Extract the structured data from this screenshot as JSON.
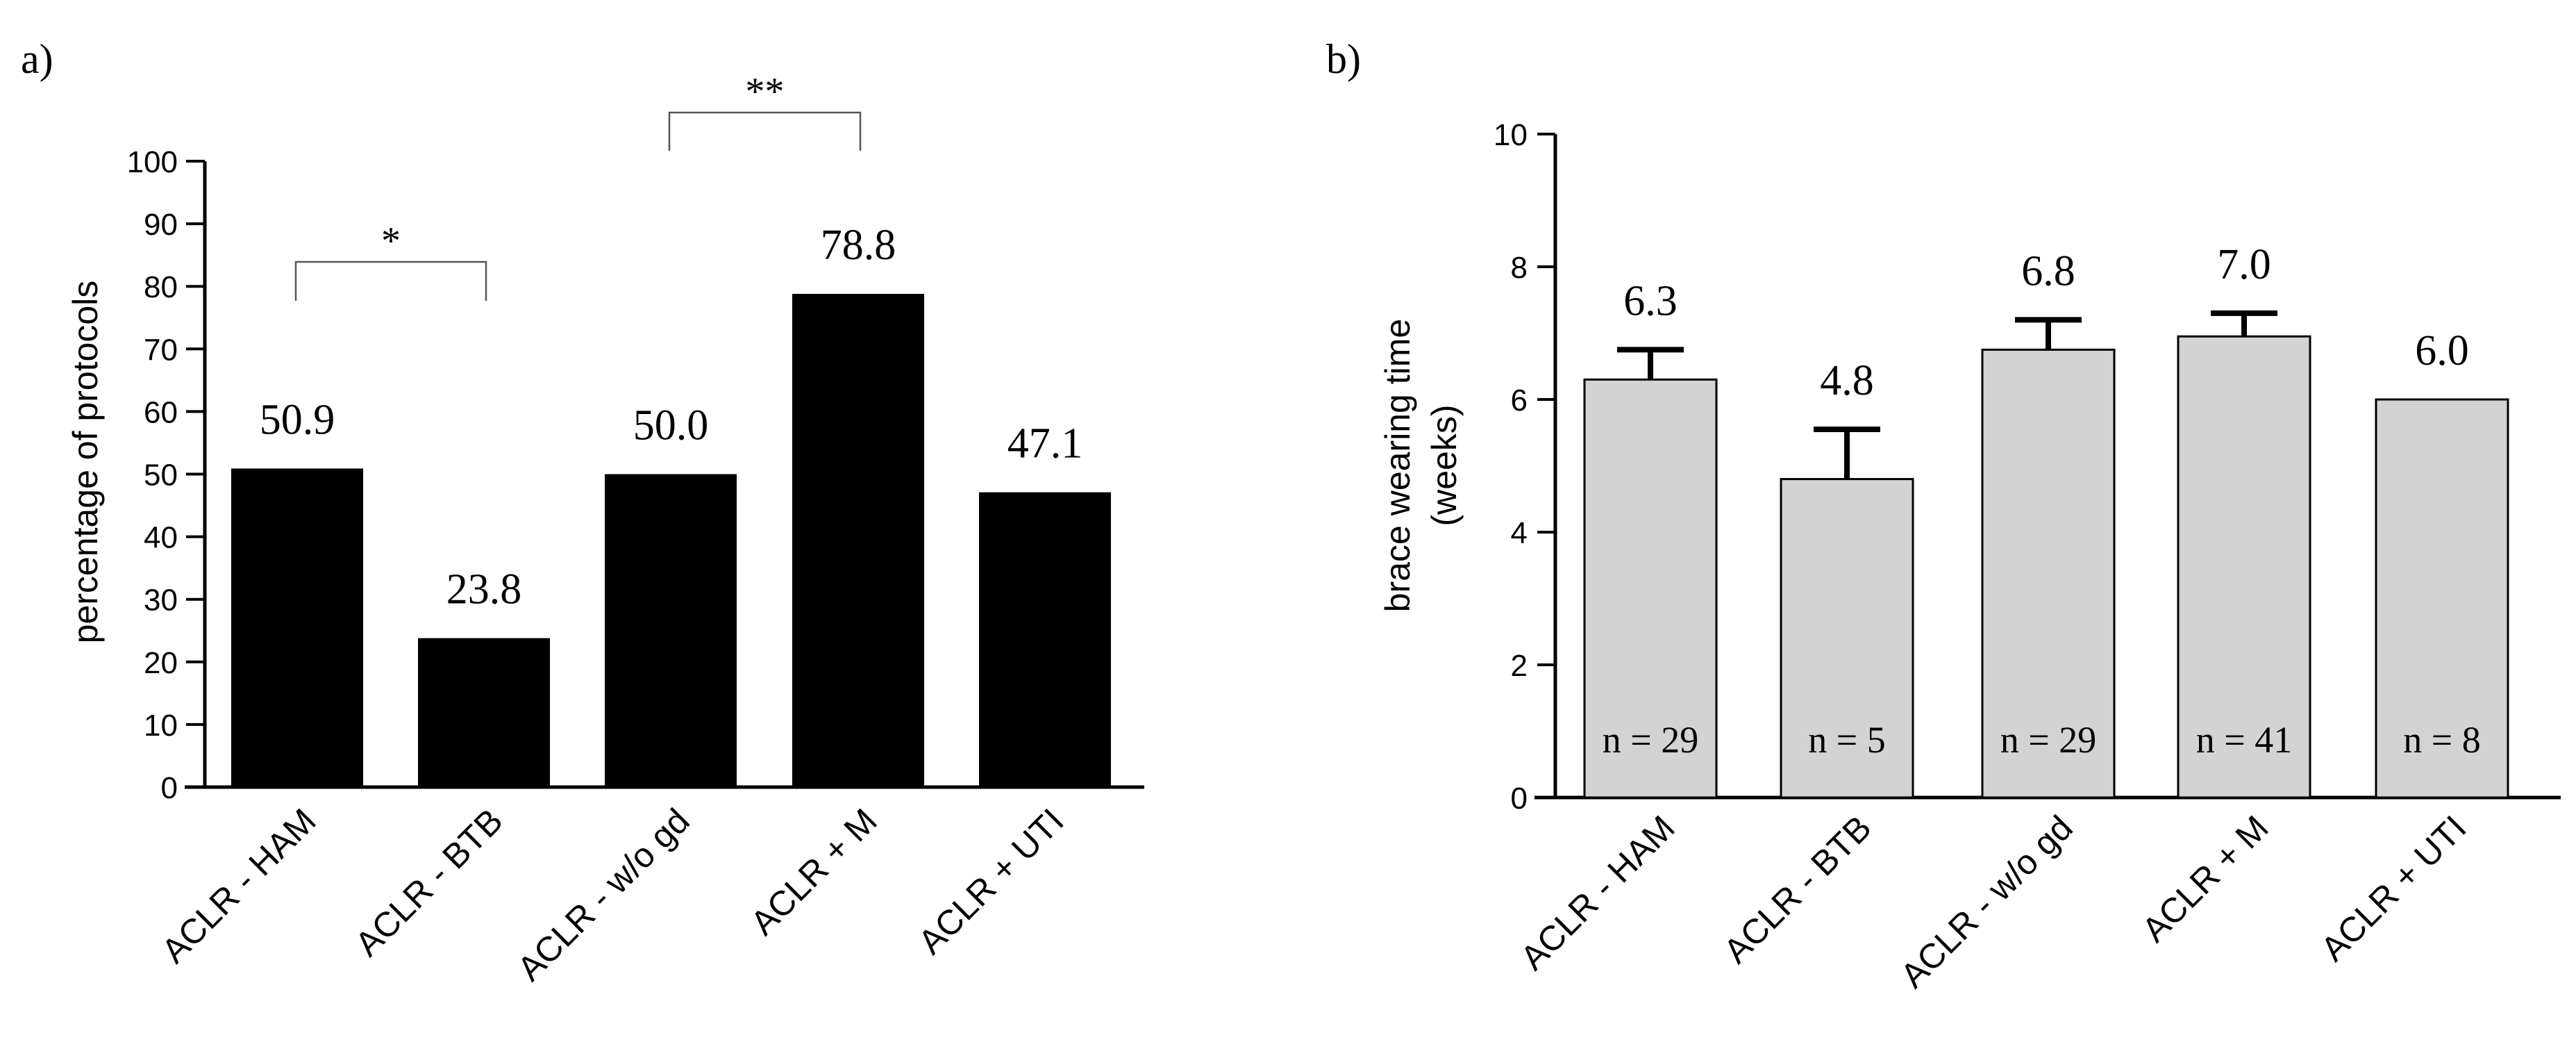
{
  "chart_data": [
    {
      "panel_label": "a)",
      "type": "bar",
      "title": "",
      "xlabel": "",
      "ylabel": "percentage of protocols",
      "ylim": [
        0,
        100
      ],
      "yticks": [
        "0",
        "10",
        "20",
        "30",
        "40",
        "50",
        "60",
        "70",
        "80",
        "90",
        "100"
      ],
      "categories": [
        "ACLR - HAM",
        "ACLR - BTB",
        "ACLR - w/o gd",
        "ACLR + M",
        "ACLR + UTI"
      ],
      "values": [
        50.9,
        23.8,
        50.0,
        78.8,
        47.1
      ],
      "data_labels": [
        "50.9",
        "23.8",
        "50.0",
        "78.8",
        "47.1"
      ],
      "bar_color": "#000000",
      "significance": [
        {
          "from": 0,
          "to": 1,
          "label": "*"
        },
        {
          "from": 2,
          "to": 3,
          "label": "**"
        }
      ]
    },
    {
      "panel_label": "b)",
      "type": "bar",
      "title": "",
      "xlabel": "",
      "ylabel_line1": "brace wearing time",
      "ylabel_line2": "(weeks)",
      "ylim": [
        0,
        10
      ],
      "yticks": [
        "0",
        "2",
        "4",
        "6",
        "8",
        "10"
      ],
      "categories": [
        "ACLR - HAM",
        "ACLR - BTB",
        "ACLR - w/o gd",
        "ACLR + M",
        "ACLR + UTI"
      ],
      "values": [
        6.3,
        4.8,
        6.75,
        6.95,
        6.0
      ],
      "error_upper": [
        6.75,
        5.55,
        7.2,
        7.3,
        null
      ],
      "data_labels": [
        "6.3",
        "4.8",
        "6.8",
        "7.0",
        "6.0"
      ],
      "n_labels": [
        "n = 29",
        "n = 5",
        "n = 29",
        "n = 41",
        "n = 8"
      ],
      "bar_color": "#d3d3d3"
    }
  ]
}
